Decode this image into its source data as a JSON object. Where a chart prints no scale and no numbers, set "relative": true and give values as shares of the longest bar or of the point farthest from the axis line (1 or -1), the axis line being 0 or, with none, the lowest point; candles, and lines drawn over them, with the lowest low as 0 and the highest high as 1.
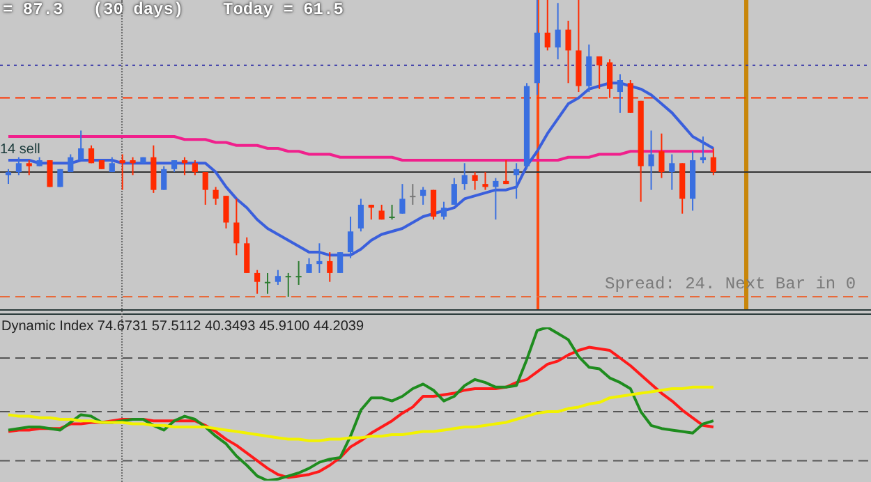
{
  "chart_data": [
    {
      "type": "candlestick",
      "relative": true,
      "marker": "none",
      "categories": [
        null,
        null,
        null,
        null,
        null,
        null,
        null,
        null,
        null,
        null,
        null,
        null,
        null,
        null,
        null,
        null,
        null,
        null,
        null,
        null,
        null,
        null,
        null,
        null,
        null,
        null,
        null,
        null,
        null,
        null,
        null,
        null,
        null,
        null,
        null,
        null,
        null,
        null,
        null,
        null,
        null,
        null,
        null,
        null,
        null,
        null,
        null,
        null,
        null,
        null,
        null,
        null,
        null,
        null,
        null,
        null,
        null,
        null,
        null,
        null,
        null,
        null,
        null,
        null,
        null,
        null,
        null,
        null,
        null
      ],
      "ohlc": [
        [
          0.41,
          0.43,
          0.38,
          0.42
        ],
        [
          0.42,
          0.47,
          0.41,
          0.45
        ],
        [
          0.45,
          0.46,
          0.41,
          0.44
        ],
        [
          0.44,
          0.47,
          0.44,
          0.46
        ],
        [
          0.46,
          0.46,
          0.37,
          0.37
        ],
        [
          0.37,
          0.43,
          0.37,
          0.43
        ],
        [
          0.42,
          0.48,
          0.42,
          0.47
        ],
        [
          0.46,
          0.56,
          0.46,
          0.5
        ],
        [
          0.5,
          0.51,
          0.45,
          0.45
        ],
        [
          0.46,
          0.46,
          0.43,
          0.43
        ],
        [
          0.42,
          0.47,
          0.42,
          0.45
        ],
        [
          0.46,
          0.48,
          0.36,
          0.45
        ],
        [
          0.46,
          0.47,
          0.41,
          0.45
        ],
        [
          0.45,
          0.47,
          0.45,
          0.47
        ],
        [
          0.47,
          0.51,
          0.35,
          0.36
        ],
        [
          0.36,
          0.44,
          0.36,
          0.43
        ],
        [
          0.43,
          0.46,
          0.42,
          0.46
        ],
        [
          0.46,
          0.47,
          0.41,
          0.45
        ],
        [
          0.45,
          0.46,
          0.41,
          0.42
        ],
        [
          0.42,
          0.42,
          0.31,
          0.36
        ],
        [
          0.36,
          0.37,
          0.31,
          0.33
        ],
        [
          0.34,
          0.34,
          0.23,
          0.25
        ],
        [
          0.25,
          0.33,
          0.14,
          0.18
        ],
        [
          0.18,
          0.2,
          0.08,
          0.08
        ],
        [
          0.08,
          0.09,
          0.01,
          0.05
        ],
        [
          0.05,
          0.08,
          0.01,
          0.05
        ],
        [
          0.05,
          0.09,
          0.04,
          0.07
        ],
        [
          0.07,
          0.08,
          0,
          0.07
        ],
        [
          0.07,
          0.12,
          0.04,
          0.07
        ],
        [
          0.08,
          0.13,
          0.08,
          0.11
        ],
        [
          0.11,
          0.18,
          0.08,
          0.12
        ],
        [
          0.12,
          0.15,
          0.05,
          0.08
        ],
        [
          0.08,
          0.15,
          0.08,
          0.15
        ],
        [
          0.15,
          0.27,
          0.13,
          0.22
        ],
        [
          0.23,
          0.33,
          0.22,
          0.31
        ],
        [
          0.31,
          0.31,
          0.26,
          0.3
        ],
        [
          0.29,
          0.31,
          0.26,
          0.26
        ],
        [
          0.27,
          0.31,
          0.26,
          0.27
        ],
        [
          0.28,
          0.38,
          0.28,
          0.33
        ],
        [
          0.34,
          0.38,
          0.31,
          0.34
        ],
        [
          0.34,
          0.37,
          0.31,
          0.36
        ],
        [
          0.36,
          0.36,
          0.26,
          0.27
        ],
        [
          0.27,
          0.32,
          0.26,
          0.3
        ],
        [
          0.31,
          0.4,
          0.31,
          0.38
        ],
        [
          0.38,
          0.45,
          0.36,
          0.41
        ],
        [
          0.41,
          0.42,
          0.36,
          0.39
        ],
        [
          0.38,
          0.42,
          0.36,
          0.37
        ],
        [
          0.37,
          0.4,
          0.26,
          0.39
        ],
        [
          0.39,
          0.46,
          0.38,
          0.38
        ],
        [
          0.41,
          0.45,
          0.33,
          0.43
        ],
        [
          0.44,
          0.72,
          0.43,
          0.71
        ],
        [
          0.72,
          1,
          0.68,
          0.89
        ],
        [
          0.89,
          1,
          0.83,
          0.84
        ],
        [
          0.84,
          0.99,
          0.8,
          0.9
        ],
        [
          0.9,
          0.93,
          0.72,
          0.83
        ],
        [
          0.83,
          1,
          0.69,
          0.71
        ],
        [
          0.71,
          0.85,
          0.69,
          0.81
        ],
        [
          0.81,
          0.81,
          0.7,
          0.78
        ],
        [
          0.79,
          0.8,
          0.67,
          0.7
        ],
        [
          0.69,
          0.75,
          0.62,
          0.73
        ],
        [
          0.72,
          0.73,
          0.62,
          0.62
        ],
        [
          0.66,
          0.66,
          0.32,
          0.44
        ],
        [
          0.44,
          0.56,
          0.36,
          0.48
        ],
        [
          0.49,
          0.55,
          0.4,
          0.42
        ],
        [
          0.42,
          0.48,
          0.36,
          0.45
        ],
        [
          0.45,
          0.45,
          0.28,
          0.33
        ],
        [
          0.33,
          0.49,
          0.29,
          0.46
        ],
        [
          0.46,
          0.54,
          0.45,
          0.47
        ],
        [
          0.47,
          0.5,
          0.41,
          0.42
        ]
      ],
      "colors": [
        "#3a6fe0",
        "#3a6fe0",
        "#ff2a00",
        "#3a6fe0",
        "#ff2a00",
        "#3a6fe0",
        "#3a6fe0",
        "#3a6fe0",
        "#ff2a00",
        "#ff2a00",
        "#3a6fe0",
        "#ff2a00",
        "#ff2a00",
        "#3a6fe0",
        "#ff2a00",
        "#3a6fe0",
        "#3a6fe0",
        "#ff2a00",
        "#ff2a00",
        "#ff2a00",
        "#ff2a00",
        "#ff2a00",
        "#ff2a00",
        "#ff2a00",
        "#ff2a00",
        "#2e7d32",
        "#3a6fe0",
        "#2e7d32",
        "#2e7d32",
        "#3a6fe0",
        "#3a6fe0",
        "#ff2a00",
        "#3a6fe0",
        "#3a6fe0",
        "#3a6fe0",
        "#ff2a00",
        "#ff2a00",
        "#2e7d32",
        "#3a6fe0",
        "#777777",
        "#3a6fe0",
        "#ff2a00",
        "#3a6fe0",
        "#3a6fe0",
        "#3a6fe0",
        "#ff2a00",
        "#ff2a00",
        "#3a6fe0",
        "#ff2a00",
        "#3a6fe0",
        "#3a6fe0",
        "#3a6fe0",
        "#ff2a00",
        "#3a6fe0",
        "#ff2a00",
        "#ff2a00",
        "#3a6fe0",
        "#ff2a00",
        "#ff2a00",
        "#3a6fe0",
        "#ff2a00",
        "#ff2a00",
        "#3a6fe0",
        "#ff2a00",
        "#3a6fe0",
        "#ff2a00",
        "#3a6fe0",
        "#3a6fe0",
        "#ff2a00"
      ],
      "series": [
        {
          "type": "line",
          "color": "#3a5fdc",
          "values": [
            0.46,
            0.46,
            0.46,
            0.45,
            0.45,
            0.45,
            0.45,
            0.46,
            0.46,
            0.46,
            0.46,
            0.45,
            0.45,
            0.45,
            0.45,
            0.45,
            0.45,
            0.45,
            0.45,
            0.45,
            0.42,
            0.37,
            0.33,
            0.3,
            0.26,
            0.23,
            0.21,
            0.19,
            0.17,
            0.15,
            0.15,
            0.14,
            0.14,
            0.14,
            0.16,
            0.19,
            0.21,
            0.22,
            0.23,
            0.25,
            0.27,
            0.28,
            0.29,
            0.3,
            0.33,
            0.34,
            0.35,
            0.36,
            0.36,
            0.37,
            0.44,
            0.49,
            0.55,
            0.6,
            0.65,
            0.67,
            0.7,
            0.71,
            0.72,
            0.72,
            0.71,
            0.7,
            0.68,
            0.65,
            0.62,
            0.58,
            0.54,
            0.52,
            0.5
          ]
        },
        {
          "type": "line",
          "color": "#f0208c",
          "values": [
            0.54,
            0.54,
            0.54,
            0.54,
            0.54,
            0.54,
            0.54,
            0.54,
            0.54,
            0.54,
            0.54,
            0.54,
            0.54,
            0.54,
            0.54,
            0.54,
            0.54,
            0.53,
            0.53,
            0.53,
            0.52,
            0.52,
            0.51,
            0.51,
            0.51,
            0.5,
            0.5,
            0.49,
            0.49,
            0.48,
            0.48,
            0.48,
            0.47,
            0.47,
            0.47,
            0.47,
            0.47,
            0.47,
            0.46,
            0.46,
            0.46,
            0.46,
            0.46,
            0.46,
            0.46,
            0.46,
            0.46,
            0.46,
            0.46,
            0.46,
            0.46,
            0.46,
            0.46,
            0.46,
            0.47,
            0.47,
            0.47,
            0.48,
            0.48,
            0.48,
            0.49,
            0.49,
            0.49,
            0.49,
            0.49,
            0.49,
            0.49,
            0.49,
            0.49
          ]
        }
      ],
      "ref_lines": [
        {
          "axis": "y",
          "value": 0.78,
          "color": "#3535a8",
          "line_style": "dotted"
        },
        {
          "axis": "y",
          "value": 0.67,
          "color": "#ff3300",
          "line_style": "dashed"
        },
        {
          "axis": "y",
          "value": 0.42,
          "color": "#333333",
          "line_style": "solid"
        },
        {
          "axis": "y",
          "value": 0,
          "color": "#e8693a",
          "line_style": "dashed"
        }
      ],
      "annotations": [
        "= 87.3   (30 days)",
        "Today = 61.5",
        "14 sell",
        "Spread: 24. Next Bar in 0"
      ]
    },
    {
      "type": "line",
      "relative": true,
      "marker": "none",
      "categories": [
        null,
        null,
        null,
        null,
        null,
        null,
        null,
        null,
        null,
        null,
        null,
        null,
        null,
        null,
        null,
        null,
        null,
        null,
        null,
        null,
        null,
        null,
        null,
        null,
        null,
        null,
        null,
        null,
        null,
        null,
        null,
        null,
        null,
        null,
        null,
        null,
        null,
        null,
        null,
        null,
        null,
        null,
        null,
        null,
        null,
        null,
        null,
        null,
        null,
        null,
        null,
        null,
        null,
        null,
        null,
        null,
        null,
        null,
        null,
        null,
        null,
        null,
        null,
        null,
        null,
        null,
        null,
        null,
        null
      ],
      "series": [
        {
          "color": "#f2f200",
          "values": [
            0.43,
            0.42,
            0.42,
            0.41,
            0.41,
            0.4,
            0.4,
            0.39,
            0.39,
            0.38,
            0.38,
            0.38,
            0.37,
            0.37,
            0.36,
            0.36,
            0.35,
            0.35,
            0.35,
            0.35,
            0.34,
            0.33,
            0.32,
            0.31,
            0.3,
            0.29,
            0.28,
            0.27,
            0.27,
            0.26,
            0.26,
            0.27,
            0.27,
            0.28,
            0.28,
            0.29,
            0.29,
            0.3,
            0.3,
            0.31,
            0.32,
            0.32,
            0.33,
            0.34,
            0.35,
            0.35,
            0.36,
            0.37,
            0.38,
            0.4,
            0.42,
            0.44,
            0.45,
            0.45,
            0.47,
            0.48,
            0.5,
            0.51,
            0.54,
            0.55,
            0.56,
            0.57,
            0.58,
            0.59,
            0.6,
            0.6,
            0.61,
            0.61,
            0.61
          ]
        },
        {
          "color": "#1e8c1e",
          "values": [
            0.33,
            0.34,
            0.35,
            0.35,
            0.34,
            0.33,
            0.38,
            0.43,
            0.42,
            0.38,
            0.38,
            0.39,
            0.4,
            0.4,
            0.36,
            0.33,
            0.39,
            0.42,
            0.4,
            0.35,
            0.29,
            0.24,
            0.16,
            0.1,
            0.03,
            0,
            0.01,
            0.03,
            0.05,
            0.08,
            0.12,
            0.14,
            0.15,
            0.29,
            0.46,
            0.54,
            0.54,
            0.52,
            0.55,
            0.6,
            0.63,
            0.59,
            0.52,
            0.55,
            0.62,
            0.66,
            0.64,
            0.61,
            0.61,
            0.62,
            0.79,
            0.98,
            1,
            0.96,
            0.92,
            0.81,
            0.74,
            0.73,
            0.67,
            0.64,
            0.6,
            0.45,
            0.36,
            0.34,
            0.33,
            0.32,
            0.31,
            0.37,
            0.39
          ]
        },
        {
          "color": "#ff1a1a",
          "values": [
            0.32,
            0.33,
            0.33,
            0.34,
            0.34,
            0.34,
            0.37,
            0.37,
            0.38,
            0.38,
            0.39,
            0.4,
            0.4,
            0.4,
            0.39,
            0.39,
            0.39,
            0.39,
            0.39,
            0.36,
            0.32,
            0.27,
            0.23,
            0.18,
            0.13,
            0.08,
            0.04,
            0.02,
            0.03,
            0.04,
            0.06,
            0.1,
            0.15,
            0.22,
            0.26,
            0.31,
            0.35,
            0.39,
            0.44,
            0.48,
            0.55,
            0.55,
            0.56,
            0.57,
            0.59,
            0.6,
            0.6,
            0.6,
            0.61,
            0.64,
            0.66,
            0.71,
            0.76,
            0.78,
            0.82,
            0.85,
            0.87,
            0.86,
            0.85,
            0.8,
            0.75,
            0.69,
            0.63,
            0.57,
            0.52,
            0.46,
            0.41,
            0.36,
            0.35
          ]
        }
      ],
      "ref_lines": [
        {
          "axis": "y",
          "value": 0.8,
          "color": "#555555",
          "line_style": "dashed"
        },
        {
          "axis": "y",
          "value": 0.45,
          "color": "#555555",
          "line_style": "dashed"
        },
        {
          "axis": "y",
          "value": 0.13,
          "color": "#555555",
          "line_style": "dashed"
        }
      ],
      "annotations": [
        "Dynamic Index 74.6731 57.5112 40.3493 45.9100 44.2039"
      ]
    }
  ]
}
